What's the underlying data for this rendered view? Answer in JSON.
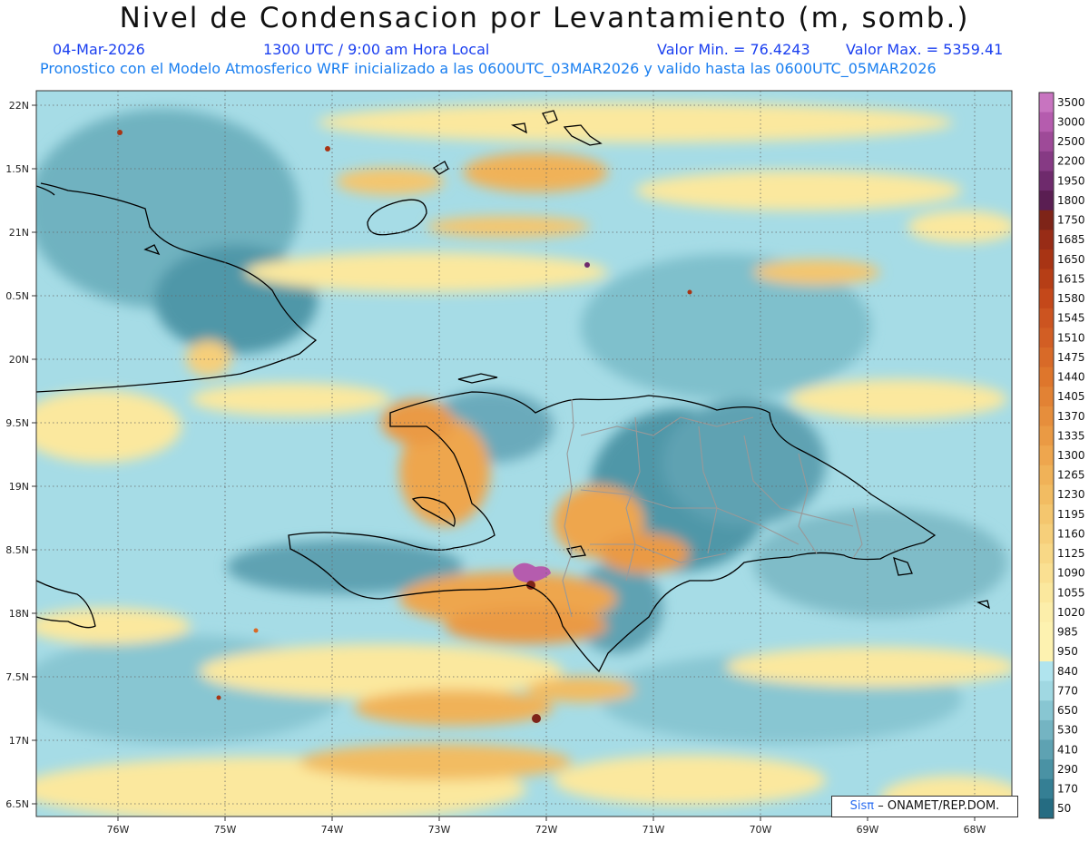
{
  "header": {
    "title": "Nivel de Condensacion por Levantamiento (m, somb.)",
    "date": "04-Mar-2026",
    "time": "1300 UTC / 9:00 am Hora Local",
    "min_label": "Valor Min. = 76.4243",
    "max_label": "Valor Max. = 5359.41",
    "forecast_line": "Pronostico con el Modelo Atmosferico WRF inicializado a las 0600UTC_03MAR2026 y valido hasta las  0600UTC_05MAR2026"
  },
  "axes": {
    "lon_labels": [
      "76W",
      "75W",
      "74W",
      "73W",
      "72W",
      "71W",
      "70W",
      "69W",
      "68W"
    ],
    "lat_labels": [
      "22N",
      "1.5N",
      "21N",
      "0.5N",
      "20N",
      "9.5N",
      "19N",
      "8.5N",
      "18N",
      "7.5N",
      "17N",
      "6.5N"
    ]
  },
  "colorbar": {
    "levels": [
      "3500",
      "3000",
      "2500",
      "2200",
      "1950",
      "1800",
      "1750",
      "1685",
      "1650",
      "1615",
      "1580",
      "1545",
      "1510",
      "1475",
      "1440",
      "1405",
      "1370",
      "1335",
      "1300",
      "1265",
      "1230",
      "1195",
      "1160",
      "1125",
      "1090",
      "1055",
      "1020",
      "985",
      "950",
      "840",
      "770",
      "650",
      "530",
      "410",
      "290",
      "170",
      "50"
    ],
    "colors": [
      "#c874c0",
      "#b55cae",
      "#9e4a98",
      "#863a84",
      "#6e2a6c",
      "#5a1e52",
      "#7e2418",
      "#982c16",
      "#a83414",
      "#b63e16",
      "#c4481a",
      "#cc5420",
      "#d25e24",
      "#d86a28",
      "#de762c",
      "#e28234",
      "#e68e3c",
      "#ea9a44",
      "#eea64e",
      "#f0b258",
      "#f2bc62",
      "#f4c66e",
      "#f6cf7a",
      "#f8d886",
      "#fae092",
      "#fbe89e",
      "#fceeaa",
      "#fdf2b0",
      "#fdf2b0",
      "#b0e4ee",
      "#a0d8e2",
      "#88c6d2",
      "#74b4c2",
      "#5ea2b2",
      "#4a92a4",
      "#357f94",
      "#256c82"
    ]
  },
  "credit": {
    "sis": "Sisπ",
    "org": "– ONAMET/REP.DOM."
  }
}
